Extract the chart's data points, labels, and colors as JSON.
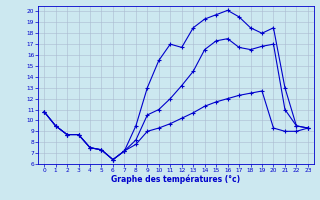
{
  "title": "Graphe des températures (°c)",
  "bg_color": "#cce8f0",
  "grid_color": "#aabbd0",
  "line_color": "#0000cc",
  "xlim": [
    -0.5,
    23.5
  ],
  "ylim": [
    6,
    20.5
  ],
  "xticks": [
    0,
    1,
    2,
    3,
    4,
    5,
    6,
    7,
    8,
    9,
    10,
    11,
    12,
    13,
    14,
    15,
    16,
    17,
    18,
    19,
    20,
    21,
    22,
    23
  ],
  "yticks": [
    6,
    7,
    8,
    9,
    10,
    11,
    12,
    13,
    14,
    15,
    16,
    17,
    18,
    19,
    20
  ],
  "line1_x": [
    0,
    1,
    2,
    3,
    4,
    5,
    6,
    7,
    8,
    9,
    10,
    11,
    12,
    13,
    14,
    15,
    16,
    17,
    18,
    19,
    20,
    21,
    22,
    23
  ],
  "line1_y": [
    10.8,
    9.5,
    8.7,
    8.7,
    7.5,
    7.3,
    6.4,
    7.2,
    9.5,
    13.0,
    15.5,
    17.0,
    16.7,
    18.5,
    19.3,
    19.7,
    20.1,
    19.5,
    18.5,
    18.0,
    18.5,
    13.0,
    9.5,
    9.3
  ],
  "line2_x": [
    0,
    1,
    2,
    3,
    4,
    5,
    6,
    7,
    8,
    9,
    10,
    11,
    12,
    13,
    14,
    15,
    16,
    17,
    18,
    19,
    20,
    21,
    22,
    23
  ],
  "line2_y": [
    10.8,
    9.5,
    8.7,
    8.7,
    7.5,
    7.3,
    6.4,
    7.2,
    8.2,
    10.5,
    11.0,
    12.0,
    13.2,
    14.5,
    16.5,
    17.3,
    17.5,
    16.7,
    16.5,
    16.8,
    17.0,
    11.0,
    9.5,
    9.3
  ],
  "line3_x": [
    0,
    1,
    2,
    3,
    4,
    5,
    6,
    7,
    8,
    9,
    10,
    11,
    12,
    13,
    14,
    15,
    16,
    17,
    18,
    19,
    20,
    21,
    22,
    23
  ],
  "line3_y": [
    10.8,
    9.5,
    8.7,
    8.7,
    7.5,
    7.3,
    6.4,
    7.2,
    7.8,
    9.0,
    9.3,
    9.7,
    10.2,
    10.7,
    11.3,
    11.7,
    12.0,
    12.3,
    12.5,
    12.7,
    9.3,
    9.0,
    9.0,
    9.3
  ],
  "marker": "+",
  "markersize": 3,
  "linewidth": 0.8,
  "tick_fontsize": 4.2,
  "xlabel_fontsize": 5.5
}
